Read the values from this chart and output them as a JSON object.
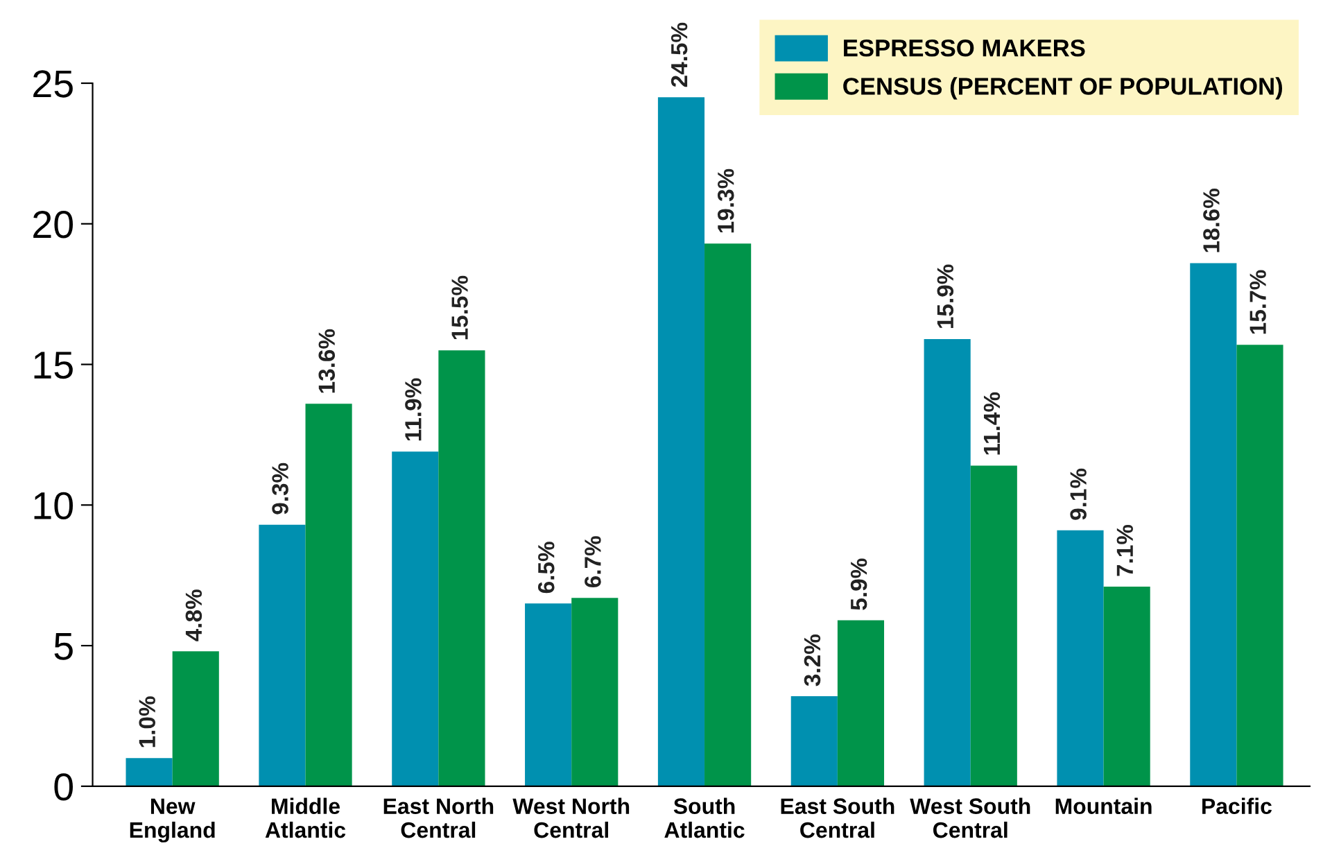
{
  "chart_data": {
    "type": "bar",
    "categories": [
      "New\nEngland",
      "Middle\nAtlantic",
      "East North\nCentral",
      "West North\nCentral",
      "South\nAtlantic",
      "East South\nCentral",
      "West South\nCentral",
      "Mountain",
      "Pacific"
    ],
    "series": [
      {
        "name": "ESPRESSO MAKERS",
        "color": "#0090b0",
        "values": [
          1.0,
          9.3,
          11.9,
          6.5,
          24.5,
          3.2,
          15.9,
          9.1,
          18.6
        ],
        "value_labels": [
          "1.0%",
          "9.3%",
          "11.9%",
          "6.5%",
          "24.5%",
          "3.2%",
          "15.9%",
          "9.1%",
          "18.6%"
        ]
      },
      {
        "name": "CENSUS (PERCENT OF POPULATION)",
        "color": "#00944a",
        "values": [
          4.8,
          13.6,
          15.5,
          6.7,
          19.3,
          5.9,
          11.4,
          7.1,
          15.7
        ],
        "value_labels": [
          "4.8%",
          "13.6%",
          "15.5%",
          "6.7%",
          "19.3%",
          "5.9%",
          "11.4%",
          "7.1%",
          "15.7%"
        ]
      }
    ],
    "ylim": [
      0,
      25
    ],
    "yticks": [
      0,
      5,
      10,
      15,
      20,
      25
    ],
    "grid": false,
    "legend": "top right"
  }
}
